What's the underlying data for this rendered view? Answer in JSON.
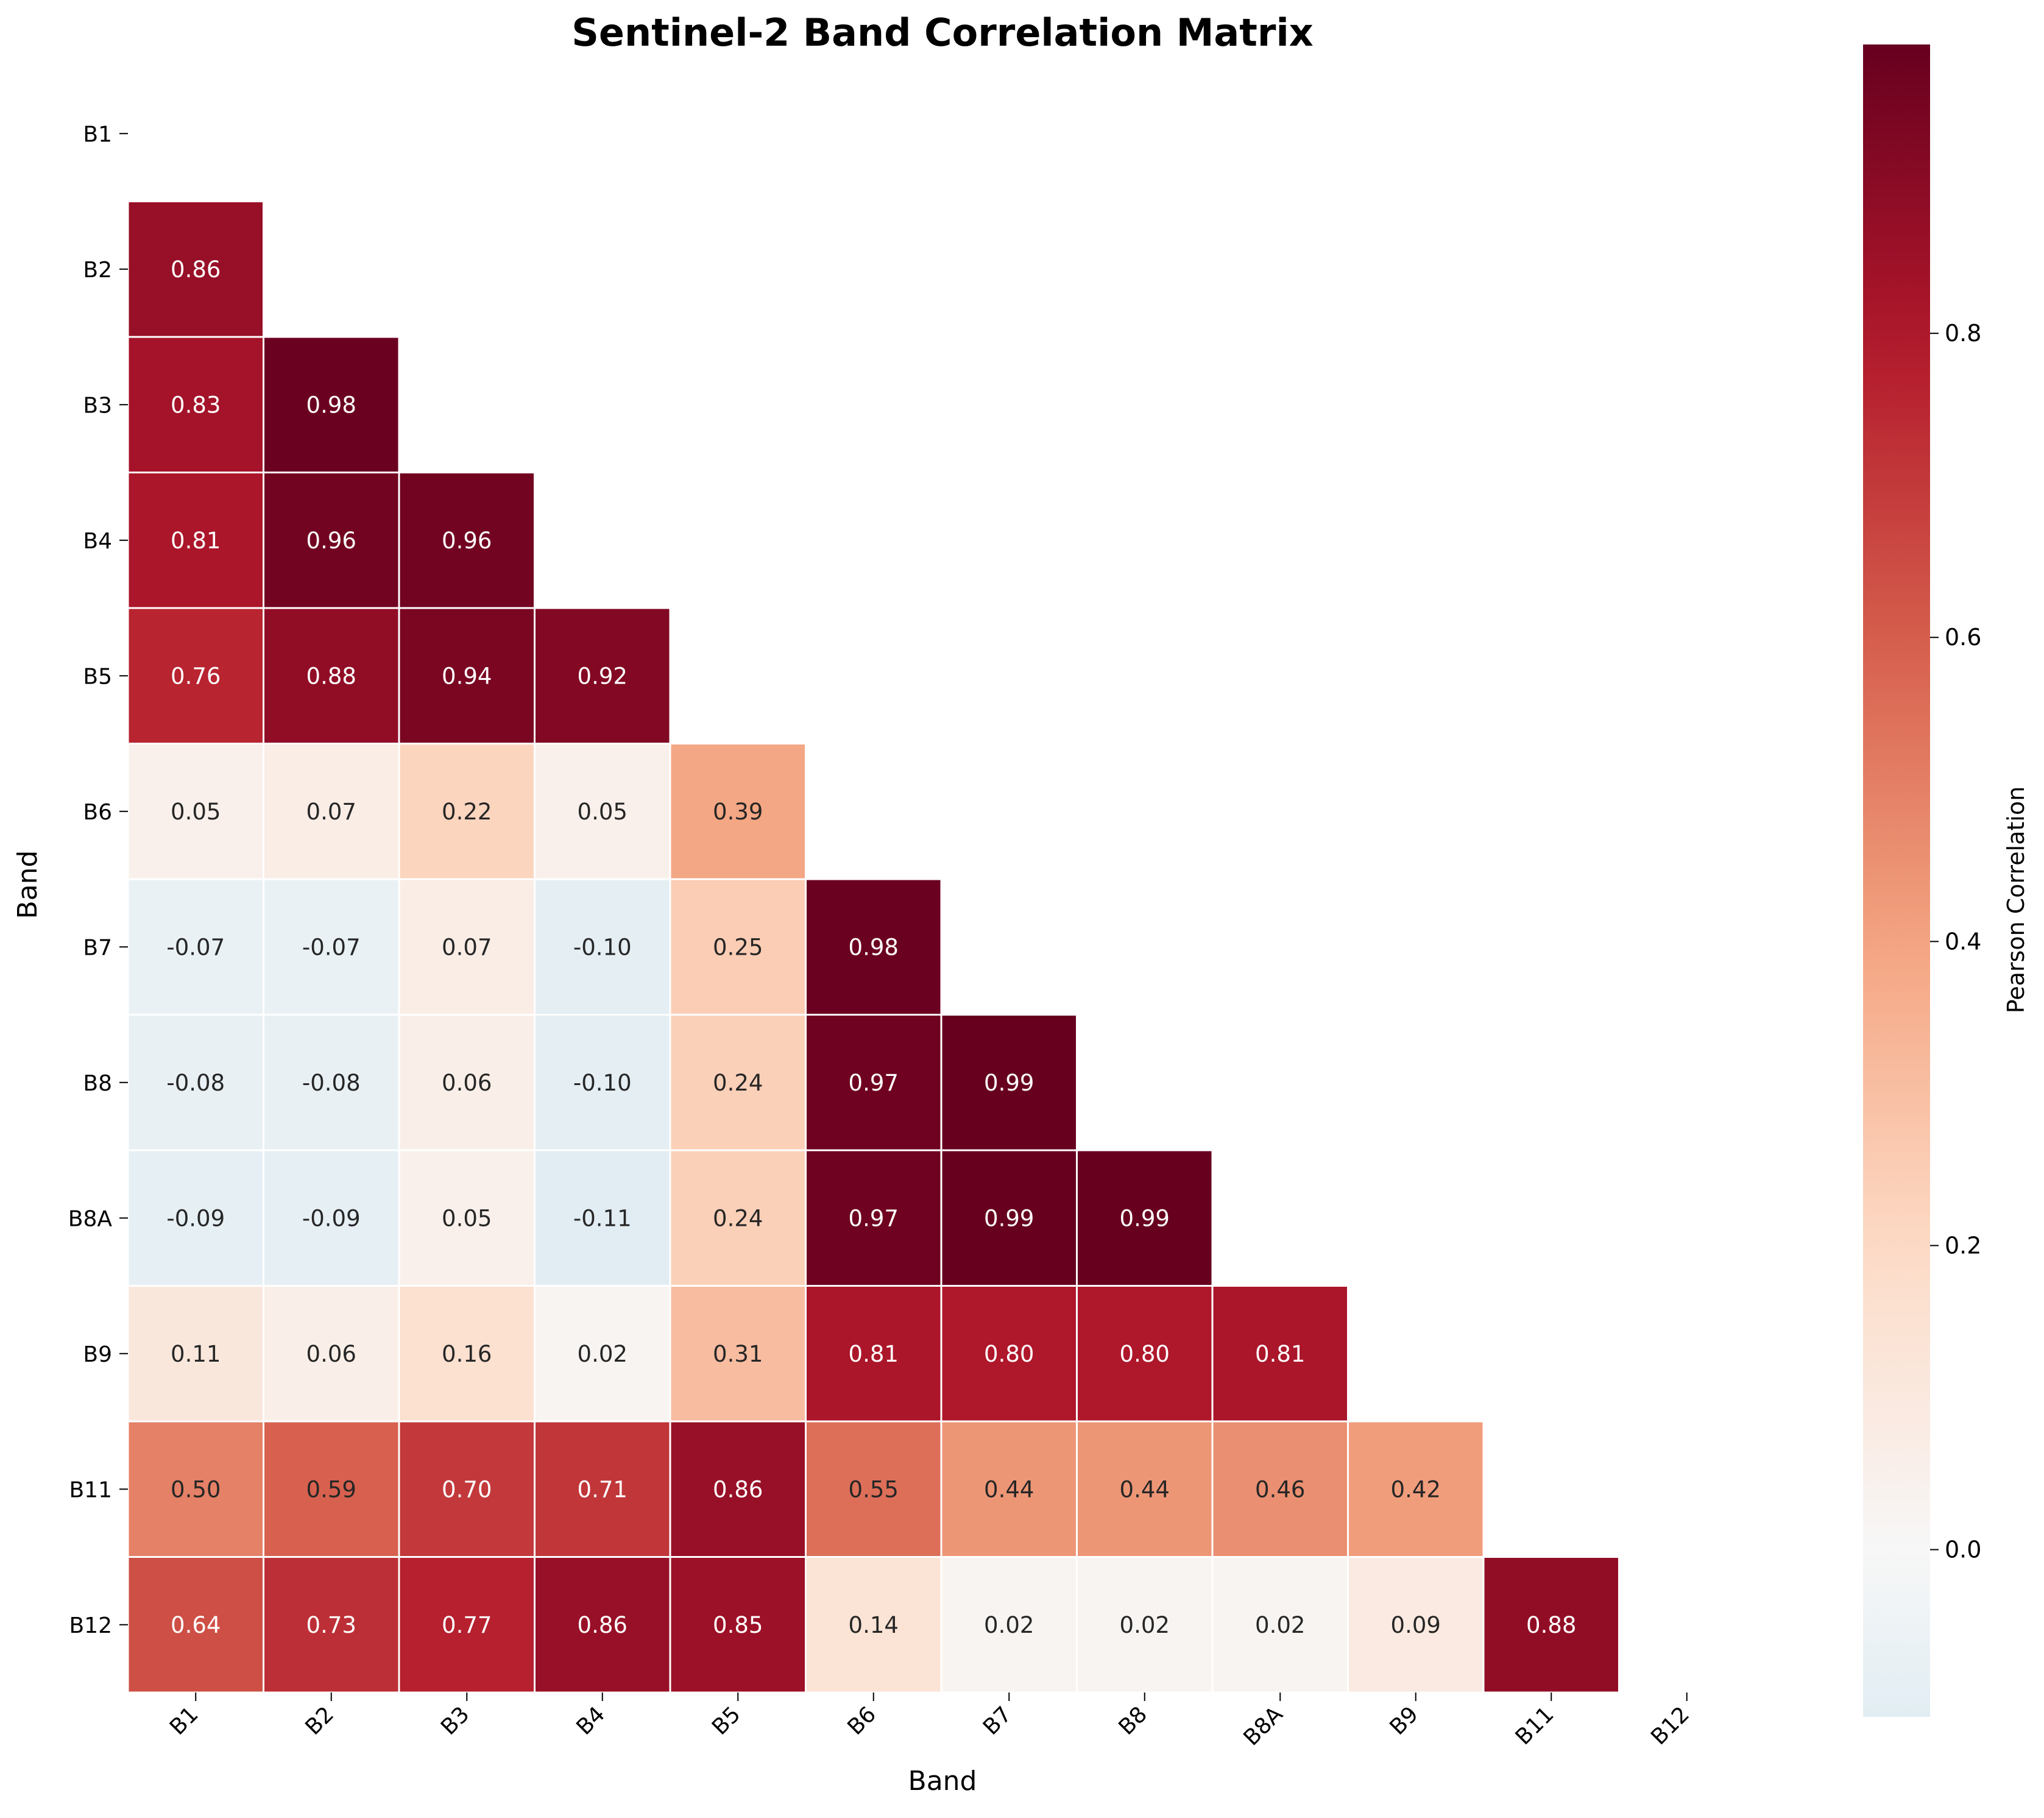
{
  "chart_data": {
    "type": "heatmap",
    "title": "Sentinel-2 Band Correlation Matrix",
    "xlabel": "Band",
    "ylabel": "Band",
    "bands": [
      "B1",
      "B2",
      "B3",
      "B4",
      "B5",
      "B6",
      "B7",
      "B8",
      "B8A",
      "B9",
      "B11",
      "B12"
    ],
    "mask": "upper triangle including diagonal",
    "matrix_lower": [
      [],
      [
        0.86
      ],
      [
        0.83,
        0.98
      ],
      [
        0.81,
        0.96,
        0.96
      ],
      [
        0.76,
        0.88,
        0.94,
        0.92
      ],
      [
        0.05,
        0.07,
        0.22,
        0.05,
        0.39
      ],
      [
        -0.07,
        -0.07,
        0.07,
        -0.1,
        0.25,
        0.98
      ],
      [
        -0.08,
        -0.08,
        0.06,
        -0.1,
        0.24,
        0.97,
        0.99
      ],
      [
        -0.09,
        -0.09,
        0.05,
        -0.11,
        0.24,
        0.97,
        0.99,
        0.99
      ],
      [
        0.11,
        0.06,
        0.16,
        0.02,
        0.31,
        0.81,
        0.8,
        0.8,
        0.81
      ],
      [
        0.5,
        0.59,
        0.7,
        0.71,
        0.86,
        0.55,
        0.44,
        0.44,
        0.46,
        0.42
      ],
      [
        0.64,
        0.73,
        0.77,
        0.86,
        0.85,
        0.14,
        0.02,
        0.02,
        0.02,
        0.09,
        0.88
      ]
    ],
    "colormap": "RdBu_r",
    "colorbar": {
      "label": "Pearson Correlation",
      "range": [
        -0.11,
        0.99
      ],
      "ticks": [
        "0.0",
        "0.2",
        "0.4",
        "0.6",
        "0.8"
      ],
      "tick_values": [
        0.0,
        0.2,
        0.4,
        0.6,
        0.8
      ]
    }
  }
}
